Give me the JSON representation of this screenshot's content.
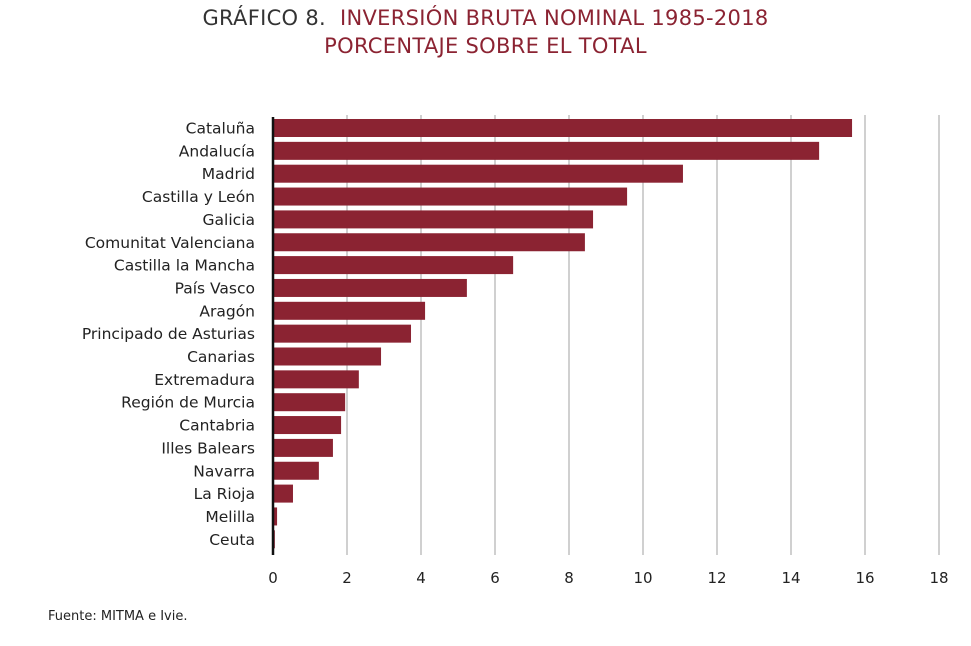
{
  "header": {
    "prefix": "GRÁFICO 8.",
    "title": "INVERSIÓN BRUTA NOMINAL 1985-2018",
    "subtitle": "PORCENTAJE SOBRE EL TOTAL"
  },
  "source": "Fuente: MITMA e Ivie.",
  "colors": {
    "bar": "#8b2332",
    "grid": "#d0d0d0",
    "title": "#8b2332"
  },
  "chart_data": {
    "type": "bar",
    "orientation": "horizontal",
    "title": "INVERSIÓN BRUTA NOMINAL 1985-2018",
    "subtitle": "PORCENTAJE SOBRE EL TOTAL",
    "categories": [
      "Cataluña",
      "Andalucía",
      "Madrid",
      "Castilla y León",
      "Galicia",
      "Comunitat Valenciana",
      "Castilla la Mancha",
      "País Vasco",
      "Aragón",
      "Principado de Asturias",
      "Canarias",
      "Extremadura",
      "Región de Murcia",
      "Cantabria",
      "Illes Balears",
      "Navarra",
      "La Rioja",
      "Melilla",
      "Ceuta"
    ],
    "values": [
      15.65,
      14.76,
      11.08,
      9.57,
      8.65,
      8.43,
      6.49,
      5.24,
      4.11,
      3.73,
      2.92,
      2.32,
      1.95,
      1.84,
      1.62,
      1.24,
      0.54,
      0.11,
      0.05
    ],
    "xlim": [
      0,
      18
    ],
    "xticks": [
      "0",
      "2",
      "4",
      "6",
      "8",
      "10",
      "12",
      "14",
      "16",
      "18"
    ],
    "grid": "vertical",
    "xlabel": "",
    "ylabel": ""
  }
}
